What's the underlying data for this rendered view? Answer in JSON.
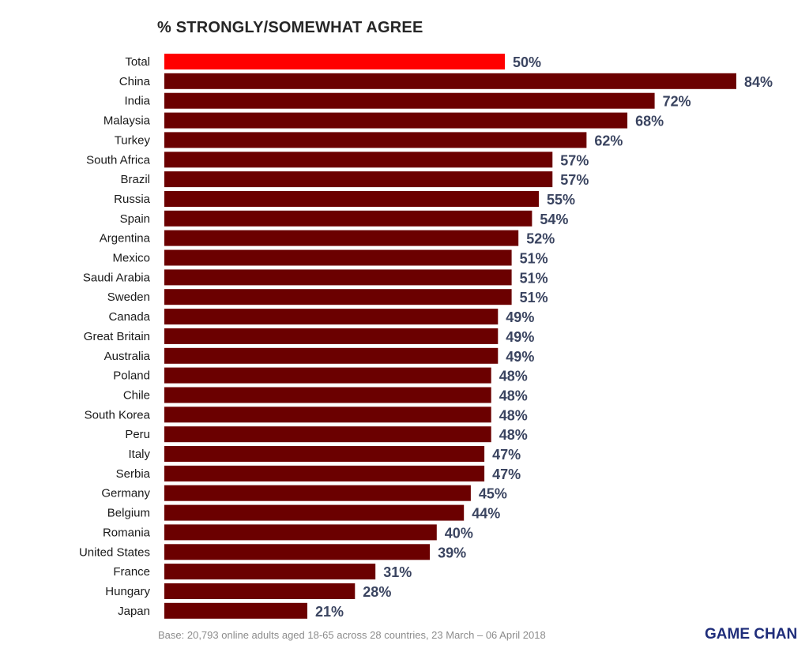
{
  "chart_data": {
    "type": "bar",
    "orientation": "horizontal",
    "title": "% STRONGLY/SOMEWHAT AGREE",
    "value_suffix": "%",
    "xlim": [
      0,
      84
    ],
    "grid": false,
    "categories": [
      "Total",
      "China",
      "India",
      "Malaysia",
      "Turkey",
      "South Africa",
      "Brazil",
      "Russia",
      "Spain",
      "Argentina",
      "Mexico",
      "Saudi Arabia",
      "Sweden",
      "Canada",
      "Great Britain",
      "Australia",
      "Poland",
      "Chile",
      "South Korea",
      "Peru",
      "Italy",
      "Serbia",
      "Germany",
      "Belgium",
      "Romania",
      "United States",
      "France",
      "Hungary",
      "Japan"
    ],
    "values": [
      50,
      84,
      72,
      68,
      62,
      57,
      57,
      55,
      54,
      52,
      51,
      51,
      51,
      49,
      49,
      49,
      48,
      48,
      48,
      48,
      47,
      47,
      45,
      44,
      40,
      39,
      31,
      28,
      21
    ],
    "value_labels": [
      "50%",
      "84%",
      "72%",
      "68%",
      "62%",
      "57%",
      "57%",
      "55%",
      "54%",
      "52%",
      "51%",
      "51%",
      "51%",
      "49%",
      "49%",
      "49%",
      "48%",
      "48%",
      "48%",
      "48%",
      "47%",
      "47%",
      "45%",
      "44%",
      "40%",
      "39%",
      "31%",
      "28%",
      "21%"
    ],
    "colors": {
      "highlight": "#ff0000",
      "bar": "#6b0000",
      "value_label": "#3a4460"
    },
    "highlight_category": "Total"
  },
  "footnote": "Base: 20,793 online adults aged 18-65 across 28 countries,  23 March – 06 April 2018",
  "brand": "GAME CHAN"
}
